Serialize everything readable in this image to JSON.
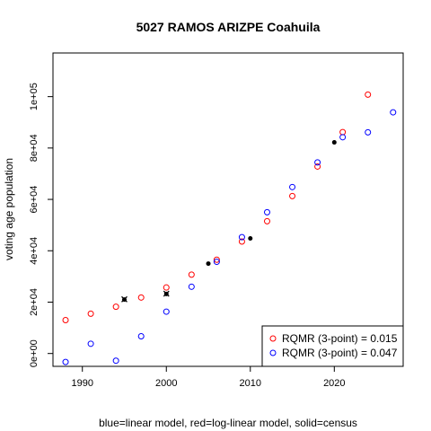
{
  "chart_data": {
    "type": "scatter",
    "title": "5027 RAMOS ARIZPE Coahuila",
    "xlabel": "blue=linear model, red=log-linear model, solid=census",
    "ylabel": "voting age population",
    "xlim": [
      1986.5,
      2028.2
    ],
    "ylim": [
      -5000,
      117000
    ],
    "x_ticks": [
      1990,
      2000,
      2010,
      2020
    ],
    "x_tick_labels": [
      "1990",
      "2000",
      "2010",
      "2020"
    ],
    "y_ticks": [
      0,
      20000,
      40000,
      60000,
      80000,
      100000
    ],
    "y_tick_labels": [
      "0e+00",
      "2e+04",
      "4e+04",
      "6e+04",
      "8e+04",
      "1e+05"
    ],
    "grid": false,
    "legend_position": "bottom-right",
    "legend": [
      {
        "label": "RQMR (3-point) = 0.015",
        "color": "#ff0000"
      },
      {
        "label": "RQMR (3-point) = 0.047",
        "color": "#0000ff"
      }
    ],
    "series": [
      {
        "color": "#ff0000",
        "marker": "open-circle",
        "points": [
          [
            1988,
            13000
          ],
          [
            1991,
            15500
          ],
          [
            1994,
            18200
          ],
          [
            1997,
            21800
          ],
          [
            2000,
            25700
          ],
          [
            2003,
            30700
          ],
          [
            2006,
            36500
          ],
          [
            2009,
            43600
          ],
          [
            2012,
            51500
          ],
          [
            2015,
            61300
          ],
          [
            2018,
            72800
          ],
          [
            2021,
            86200
          ],
          [
            2024,
            100800
          ]
        ]
      },
      {
        "color": "#0000ff",
        "marker": "open-circle",
        "points": [
          [
            1988,
            -3300
          ],
          [
            1991,
            3800
          ],
          [
            1994,
            -2800
          ],
          [
            1997,
            6700
          ],
          [
            2000,
            16300
          ],
          [
            2003,
            26000
          ],
          [
            2006,
            35700
          ],
          [
            2009,
            45300
          ],
          [
            2012,
            55000
          ],
          [
            2015,
            64800
          ],
          [
            2018,
            74400
          ],
          [
            2021,
            84200
          ],
          [
            2024,
            86100
          ],
          [
            2027,
            93900
          ]
        ]
      },
      {
        "color": "#000000",
        "marker": "solid-circle",
        "points": [
          [
            1995,
            21000
          ],
          [
            2000,
            23200
          ],
          [
            2005,
            35000
          ],
          [
            2010,
            44800
          ],
          [
            2020,
            82200
          ]
        ]
      },
      {
        "color": "#000000",
        "marker": "cross",
        "points": [
          [
            1995,
            21100
          ],
          [
            2000,
            23300
          ]
        ]
      }
    ]
  }
}
